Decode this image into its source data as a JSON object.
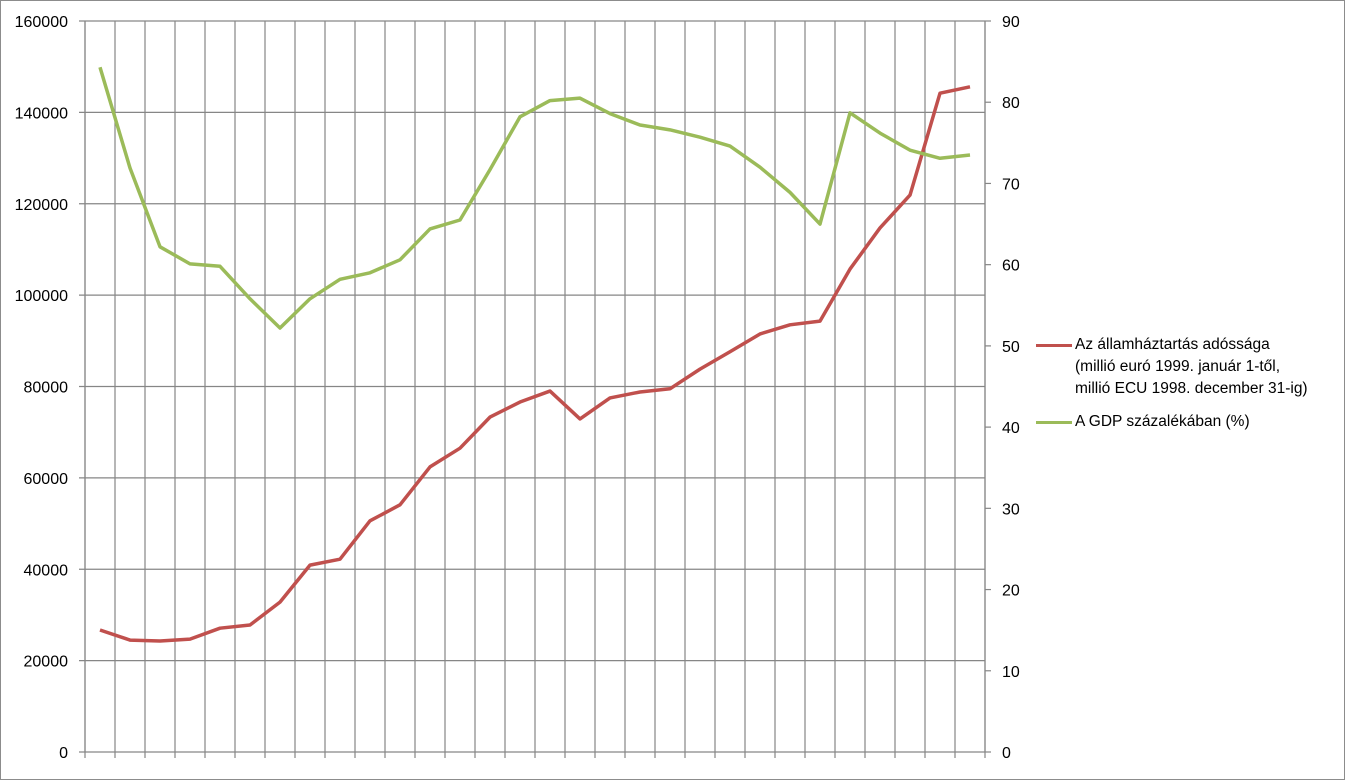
{
  "chart_data": {
    "type": "line",
    "title": "",
    "xlabel": "",
    "ylabel": "",
    "categories_count": 30,
    "grid": {
      "horizontal": true,
      "vertical": true
    },
    "legend_position": "right",
    "y_left": {
      "lim": [
        0,
        160000
      ],
      "ticks": [
        "0",
        "20000",
        "40000",
        "60000",
        "80000",
        "100000",
        "120000",
        "140000",
        "160000"
      ]
    },
    "y_right": {
      "lim": [
        0,
        90
      ],
      "ticks": [
        "0",
        "10",
        "20",
        "30",
        "40",
        "50",
        "60",
        "70",
        "80",
        "90"
      ]
    },
    "series": [
      {
        "name": "Az államháztartás adóssága (millió euró 1999. január 1-től, millió ECU 1998. december 31-ig)",
        "legend_lines": [
          "Az államháztartás adóssága",
          "(millió euró 1999. január 1-től,",
          "millió ECU 1998. december 31-ig)"
        ],
        "axis": "left",
        "color": "#c0504d",
        "values": [
          26700,
          24500,
          24300,
          24700,
          27100,
          27800,
          32800,
          40900,
          42200,
          50600,
          54100,
          62400,
          66500,
          73300,
          76600,
          79000,
          72900,
          77500,
          78800,
          79500,
          83800,
          87600,
          91500,
          93500,
          94300,
          105700,
          114700,
          121900,
          144200,
          145600
        ]
      },
      {
        "name": "A GDP százalékában (%)",
        "legend_lines": [
          "A GDP százalékában (%)"
        ],
        "axis": "right",
        "color": "#9bbb59",
        "values": [
          84.3,
          71.9,
          62.2,
          60.1,
          59.8,
          55.8,
          52.2,
          55.8,
          58.2,
          59.0,
          60.6,
          64.4,
          65.5,
          71.7,
          78.2,
          80.2,
          80.5,
          78.6,
          77.2,
          76.6,
          75.7,
          74.6,
          72.0,
          68.9,
          65.0,
          78.7,
          76.2,
          74.1,
          73.1,
          73.5
        ]
      }
    ]
  }
}
